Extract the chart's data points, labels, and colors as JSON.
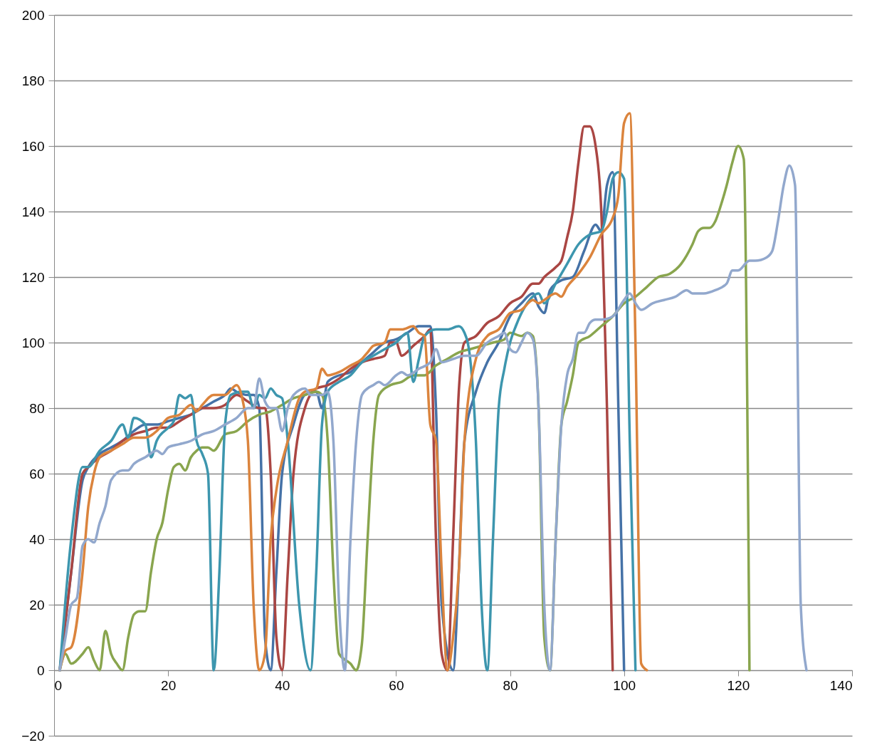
{
  "chart_data": {
    "type": "line",
    "xlim": [
      0,
      140
    ],
    "xticks": [
      0,
      20,
      40,
      60,
      80,
      100,
      120,
      140
    ],
    "ylim": [
      -20,
      200
    ],
    "yticks": [
      -20,
      0,
      20,
      40,
      60,
      80,
      100,
      120,
      140,
      160,
      180,
      200
    ],
    "grid": "y",
    "legend": false,
    "marker": "none",
    "line_style": "solid",
    "series": [
      {
        "color": "#4572a7",
        "x": [
          1,
          3,
          5,
          6,
          8,
          10,
          12,
          14,
          16,
          18,
          20,
          22,
          24,
          25,
          26,
          28,
          30,
          31,
          32,
          34,
          35,
          36,
          37,
          38,
          39,
          40,
          42,
          44,
          46,
          47,
          48,
          50,
          52,
          54,
          56,
          58,
          60,
          62,
          64,
          66,
          67,
          68,
          70,
          71,
          72,
          74,
          76,
          78,
          80,
          82,
          84,
          85,
          86,
          87,
          89,
          91,
          93,
          95,
          96,
          97,
          98,
          99,
          100
        ],
        "values": [
          0,
          30,
          58,
          62,
          66,
          68,
          70,
          73,
          75,
          75,
          76,
          77,
          78,
          79,
          80,
          82,
          84,
          86,
          85,
          84,
          84,
          80,
          10,
          0,
          30,
          60,
          75,
          84,
          85,
          80,
          88,
          90,
          91,
          94,
          97,
          100,
          101,
          103,
          105,
          105,
          80,
          20,
          0,
          30,
          70,
          85,
          94,
          100,
          108,
          112,
          115,
          111,
          109,
          116,
          119,
          120,
          128,
          136,
          134,
          148,
          152,
          80,
          0
        ]
      },
      {
        "color": "#aa4643",
        "x": [
          1,
          3,
          5,
          6,
          8,
          10,
          12,
          14,
          16,
          18,
          20,
          22,
          24,
          26,
          28,
          30,
          32,
          34,
          36,
          37,
          38,
          39,
          40,
          41,
          42,
          44,
          46,
          48,
          50,
          52,
          54,
          56,
          58,
          59,
          60,
          61,
          63,
          65,
          66,
          67,
          68,
          69,
          70,
          71,
          72,
          74,
          76,
          78,
          80,
          82,
          84,
          85,
          86,
          88,
          89,
          90,
          91,
          92,
          93,
          94,
          95,
          96,
          97,
          98
        ],
        "values": [
          0,
          30,
          60,
          62,
          65,
          67,
          70,
          72,
          73,
          74,
          74,
          76,
          78,
          80,
          80,
          81,
          84,
          82,
          80,
          80,
          60,
          10,
          0,
          30,
          60,
          80,
          86,
          87,
          89,
          92,
          94,
          95,
          96,
          100,
          100,
          96,
          99,
          102,
          104,
          40,
          5,
          0,
          40,
          85,
          100,
          102,
          106,
          108,
          112,
          114,
          118,
          118,
          120,
          123,
          125,
          132,
          140,
          155,
          166,
          166,
          160,
          140,
          80,
          0
        ]
      },
      {
        "color": "#89a54e",
        "x": [
          1,
          2,
          3,
          5,
          6,
          7,
          8,
          9,
          10,
          11,
          12,
          13,
          14,
          15,
          16,
          17,
          18,
          19,
          20,
          21,
          22,
          23,
          24,
          25,
          26,
          27,
          28,
          30,
          32,
          34,
          36,
          38,
          40,
          42,
          44,
          46,
          47,
          48,
          49,
          50,
          52,
          53,
          54,
          55,
          56,
          57,
          59,
          61,
          63,
          65,
          67,
          69,
          71,
          73,
          75,
          77,
          79,
          80,
          82,
          83,
          84,
          85,
          86,
          87,
          88,
          89,
          90,
          91,
          92,
          94,
          96,
          98,
          100,
          102,
          104,
          106,
          108,
          110,
          112,
          113,
          114,
          115,
          116,
          117,
          118,
          119,
          120,
          121,
          122
        ],
        "values": [
          0,
          5,
          2,
          5,
          7,
          3,
          0,
          12,
          5,
          2,
          0,
          10,
          17,
          18,
          18,
          30,
          40,
          45,
          55,
          62,
          63,
          61,
          65,
          67,
          68,
          68,
          67,
          72,
          73,
          76,
          78,
          79,
          81,
          83,
          84,
          85,
          84,
          70,
          30,
          5,
          2,
          0,
          8,
          40,
          70,
          84,
          87,
          88,
          90,
          90,
          93,
          95,
          97,
          98,
          99,
          100,
          101,
          103,
          102,
          103,
          102,
          80,
          10,
          0,
          40,
          75,
          82,
          90,
          100,
          102,
          105,
          108,
          112,
          114,
          117,
          120,
          121,
          124,
          130,
          134,
          135,
          135,
          137,
          142,
          148,
          155,
          160,
          156,
          0
        ]
      },
      {
        "color": "#3d96ae",
        "x": [
          1,
          3,
          5,
          6,
          8,
          10,
          12,
          13,
          14,
          16,
          17,
          18,
          20,
          21,
          22,
          23,
          24,
          25,
          26,
          27,
          28,
          29,
          30,
          31,
          33,
          34,
          35,
          36,
          37,
          38,
          39,
          40,
          41,
          43,
          45,
          46,
          47,
          48,
          50,
          52,
          54,
          56,
          58,
          60,
          62,
          63,
          64,
          65,
          67,
          69,
          71,
          72,
          73,
          74,
          75,
          76,
          77,
          78,
          79,
          80,
          81,
          83,
          85,
          86,
          88,
          90,
          92,
          94,
          96,
          97,
          98,
          99,
          100,
          101,
          102
        ],
        "values": [
          0,
          40,
          62,
          62,
          67,
          70,
          75,
          71,
          77,
          75,
          65,
          70,
          74,
          76,
          84,
          83,
          84,
          70,
          66,
          60,
          0,
          30,
          75,
          84,
          85,
          85,
          80,
          84,
          83,
          86,
          84,
          83,
          70,
          20,
          0,
          30,
          75,
          85,
          88,
          90,
          94,
          96,
          98,
          100,
          103,
          88,
          95,
          102,
          104,
          104,
          105,
          103,
          95,
          70,
          20,
          0,
          40,
          80,
          92,
          100,
          105,
          112,
          115,
          112,
          118,
          124,
          130,
          133,
          134,
          140,
          150,
          152,
          150,
          70,
          0
        ]
      },
      {
        "color": "#db843d",
        "x": [
          1,
          2,
          3,
          5,
          6,
          7,
          8,
          10,
          12,
          14,
          16,
          18,
          20,
          22,
          24,
          25,
          26,
          28,
          30,
          32,
          33,
          34,
          35,
          36,
          37,
          38,
          39,
          41,
          43,
          44,
          46,
          47,
          48,
          50,
          52,
          54,
          55,
          56,
          58,
          59,
          61,
          63,
          64,
          65,
          66,
          67,
          68,
          69,
          70,
          71,
          72,
          74,
          76,
          78,
          80,
          82,
          84,
          85,
          86,
          88,
          89,
          90,
          92,
          94,
          96,
          98,
          99,
          100,
          101,
          102,
          103,
          104
        ],
        "values": [
          0,
          6,
          7,
          30,
          50,
          60,
          65,
          67,
          69,
          71,
          71,
          73,
          77,
          78,
          81,
          79,
          81,
          84,
          84,
          87,
          83,
          70,
          20,
          0,
          5,
          40,
          55,
          70,
          83,
          85,
          86,
          92,
          90,
          91,
          93,
          95,
          97,
          99,
          100,
          104,
          104,
          105,
          103,
          102,
          75,
          70,
          30,
          0,
          10,
          30,
          70,
          95,
          102,
          104,
          109,
          110,
          113,
          112,
          113,
          115,
          114,
          117,
          121,
          126,
          133,
          138,
          145,
          167,
          170,
          100,
          2,
          0
        ]
      },
      {
        "color": "#92a8cd",
        "x": [
          1,
          2,
          3,
          4,
          5,
          6,
          7,
          8,
          9,
          10,
          12,
          13,
          14,
          16,
          18,
          19,
          20,
          22,
          24,
          26,
          28,
          30,
          32,
          34,
          35,
          36,
          37,
          38,
          39,
          40,
          41,
          42,
          44,
          45,
          47,
          48,
          49,
          50,
          51,
          52,
          53,
          54,
          55,
          56,
          57,
          58,
          60,
          61,
          62,
          64,
          66,
          67,
          68,
          70,
          72,
          74,
          76,
          78,
          79,
          80,
          81,
          82,
          83,
          84,
          85,
          86,
          87,
          88,
          89,
          90,
          91,
          92,
          93,
          94,
          95,
          96,
          98,
          100,
          101,
          102,
          103,
          105,
          107,
          109,
          111,
          112,
          114,
          116,
          118,
          119,
          120,
          122,
          123,
          125,
          126,
          127,
          128,
          129,
          130,
          131,
          132
        ],
        "values": [
          0,
          10,
          20,
          22,
          38,
          40,
          39,
          45,
          50,
          58,
          61,
          61,
          63,
          65,
          67,
          66,
          68,
          69,
          70,
          72,
          73,
          75,
          77,
          80,
          80,
          89,
          82,
          80,
          80,
          73,
          80,
          84,
          86,
          84,
          84,
          85,
          70,
          20,
          0,
          40,
          70,
          84,
          86,
          87,
          88,
          87,
          90,
          91,
          90,
          92,
          94,
          98,
          94,
          95,
          96,
          96,
          100,
          102,
          103,
          98,
          97,
          100,
          103,
          101,
          80,
          20,
          0,
          40,
          75,
          90,
          95,
          103,
          103,
          106,
          107,
          107,
          108,
          113,
          115,
          112,
          110,
          112,
          113,
          114,
          116,
          115,
          115,
          116,
          118,
          122,
          122,
          125,
          125,
          126,
          128,
          137,
          148,
          154,
          148,
          20,
          0
        ]
      }
    ]
  }
}
